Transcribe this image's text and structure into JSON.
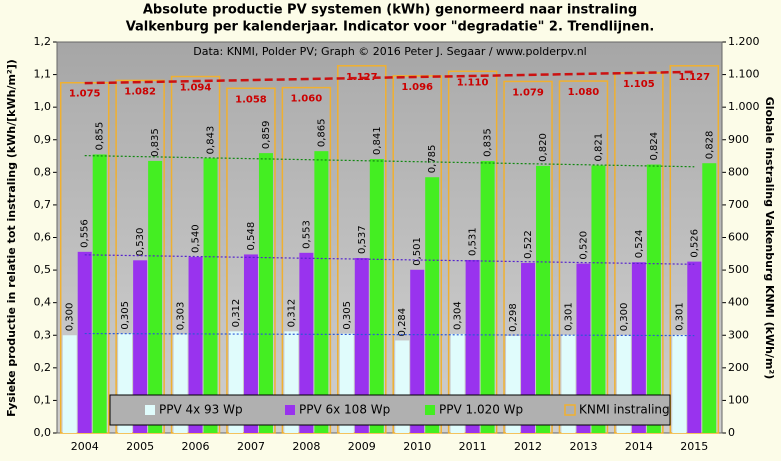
{
  "chart_data": {
    "type": "bar",
    "title": [
      "Absolute productie PV systemen (kWh) genormeerd naar instraling",
      "Valkenburg per kalenderjaar. Indicator voor \"degradatie\" 2. Trendlijnen."
    ],
    "subtitle": "Data: KNMI, Polder PV; Graph © 2016 Peter J. Segaar / www.polderpv.nl",
    "ylabel": "Fysieke productie in relatie tot instraling (kWh/[kWh/m²])",
    "y2label": "Globale instraling Valkenburg KNMI (kWh/m²)",
    "categories": [
      "2004",
      "2005",
      "2006",
      "2007",
      "2008",
      "2009",
      "2010",
      "2011",
      "2012",
      "2013",
      "2014",
      "2015"
    ],
    "ylim": [
      0,
      1.2
    ],
    "yticks": [
      {
        "value": 0,
        "label": "0,0"
      },
      {
        "value": 0.1,
        "label": "0,1"
      },
      {
        "value": 0.2,
        "label": "0,2"
      },
      {
        "value": 0.3,
        "label": "0,3"
      },
      {
        "value": 0.4,
        "label": "0,4"
      },
      {
        "value": 0.5,
        "label": "0,5"
      },
      {
        "value": 0.6,
        "label": "0,6"
      },
      {
        "value": 0.7,
        "label": "0,7"
      },
      {
        "value": 0.8,
        "label": "0,8"
      },
      {
        "value": 0.9,
        "label": "0,9"
      },
      {
        "value": 1.0,
        "label": "1,0"
      },
      {
        "value": 1.1,
        "label": "1,1"
      },
      {
        "value": 1.2,
        "label": "1,2"
      }
    ],
    "y2lim": [
      0,
      1200
    ],
    "y2ticks": [
      0,
      100,
      200,
      300,
      400,
      500,
      600,
      700,
      800,
      900,
      {
        "value": 1000,
        "label": "1.000"
      },
      {
        "value": 1100,
        "label": "1.100"
      },
      {
        "value": 1200,
        "label": "1.200"
      }
    ],
    "legend": "bottom",
    "trendlines": true,
    "series": [
      {
        "name": "PPV 4x 93 Wp",
        "color": "#e0fcfc",
        "trend_color": "#2a58d8",
        "values": [
          0.3,
          0.305,
          0.303,
          0.312,
          0.312,
          0.305,
          0.284,
          0.304,
          0.298,
          0.301,
          0.3,
          0.301
        ],
        "value_labels": [
          "0,300",
          "0,305",
          "0,303",
          "0,312",
          "0,312",
          "0,305",
          "0,284",
          "0,304",
          "0,298",
          "0,301",
          "0,300",
          "0,301"
        ]
      },
      {
        "name": "PPV 6x 108 Wp",
        "color": "#9933ee",
        "trend_color": "#5522cc",
        "values": [
          0.556,
          0.53,
          0.54,
          0.548,
          0.553,
          0.537,
          0.501,
          0.531,
          0.522,
          0.52,
          0.524,
          0.526
        ],
        "value_labels": [
          "0,556",
          "0,530",
          "0,540",
          "0,548",
          "0,553",
          "0,537",
          "0,501",
          "0,531",
          "0,522",
          "0,520",
          "0,524",
          "0,526"
        ]
      },
      {
        "name": "PPV 1.020 Wp",
        "color": "#44ee22",
        "trend_color": "#118811",
        "values": [
          0.855,
          0.835,
          0.843,
          0.859,
          0.865,
          0.841,
          0.785,
          0.835,
          0.82,
          0.821,
          0.824,
          0.828
        ],
        "value_labels": [
          "0,855",
          "0,835",
          "0,843",
          "0,859",
          "0,865",
          "0,841",
          "0,785",
          "0,835",
          "0,820",
          "0,821",
          "0,824",
          "0,828"
        ]
      },
      {
        "name": "KNMI instraling",
        "color": "#f0b030",
        "trend_color": "#cc1111",
        "axis": "y2",
        "values": [
          1075,
          1082,
          1094,
          1058,
          1060,
          1127,
          1096,
          1110,
          1079,
          1080,
          1105,
          1127
        ],
        "value_labels": [
          "1.075",
          "1.082",
          "1.094",
          "1.058",
          "1.060",
          "1.127",
          "1.096",
          "1.110",
          "1.079",
          "1.080",
          "1.105",
          "1.127"
        ]
      }
    ]
  }
}
